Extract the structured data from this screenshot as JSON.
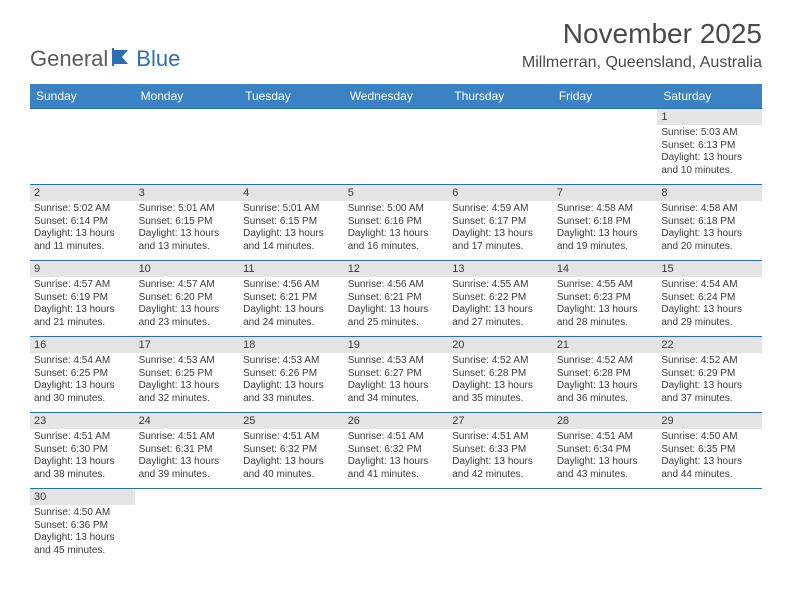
{
  "brand": {
    "general": "General",
    "blue": "Blue"
  },
  "title": "November 2025",
  "location": "Millmerran, Queensland, Australia",
  "colors": {
    "header_bg": "#3b82c4",
    "border": "#2a6fb5",
    "daynum_bg": "#e4e4e4",
    "text": "#3a3a3a"
  },
  "day_labels": [
    "Sunday",
    "Monday",
    "Tuesday",
    "Wednesday",
    "Thursday",
    "Friday",
    "Saturday"
  ],
  "weeks": [
    [
      {
        "day": "",
        "sunrise": "",
        "sunset": "",
        "daylight": ""
      },
      {
        "day": "",
        "sunrise": "",
        "sunset": "",
        "daylight": ""
      },
      {
        "day": "",
        "sunrise": "",
        "sunset": "",
        "daylight": ""
      },
      {
        "day": "",
        "sunrise": "",
        "sunset": "",
        "daylight": ""
      },
      {
        "day": "",
        "sunrise": "",
        "sunset": "",
        "daylight": ""
      },
      {
        "day": "",
        "sunrise": "",
        "sunset": "",
        "daylight": ""
      },
      {
        "day": "1",
        "sunrise": "Sunrise: 5:03 AM",
        "sunset": "Sunset: 6:13 PM",
        "daylight": "Daylight: 13 hours and 10 minutes."
      }
    ],
    [
      {
        "day": "2",
        "sunrise": "Sunrise: 5:02 AM",
        "sunset": "Sunset: 6:14 PM",
        "daylight": "Daylight: 13 hours and 11 minutes."
      },
      {
        "day": "3",
        "sunrise": "Sunrise: 5:01 AM",
        "sunset": "Sunset: 6:15 PM",
        "daylight": "Daylight: 13 hours and 13 minutes."
      },
      {
        "day": "4",
        "sunrise": "Sunrise: 5:01 AM",
        "sunset": "Sunset: 6:15 PM",
        "daylight": "Daylight: 13 hours and 14 minutes."
      },
      {
        "day": "5",
        "sunrise": "Sunrise: 5:00 AM",
        "sunset": "Sunset: 6:16 PM",
        "daylight": "Daylight: 13 hours and 16 minutes."
      },
      {
        "day": "6",
        "sunrise": "Sunrise: 4:59 AM",
        "sunset": "Sunset: 6:17 PM",
        "daylight": "Daylight: 13 hours and 17 minutes."
      },
      {
        "day": "7",
        "sunrise": "Sunrise: 4:58 AM",
        "sunset": "Sunset: 6:18 PM",
        "daylight": "Daylight: 13 hours and 19 minutes."
      },
      {
        "day": "8",
        "sunrise": "Sunrise: 4:58 AM",
        "sunset": "Sunset: 6:18 PM",
        "daylight": "Daylight: 13 hours and 20 minutes."
      }
    ],
    [
      {
        "day": "9",
        "sunrise": "Sunrise: 4:57 AM",
        "sunset": "Sunset: 6:19 PM",
        "daylight": "Daylight: 13 hours and 21 minutes."
      },
      {
        "day": "10",
        "sunrise": "Sunrise: 4:57 AM",
        "sunset": "Sunset: 6:20 PM",
        "daylight": "Daylight: 13 hours and 23 minutes."
      },
      {
        "day": "11",
        "sunrise": "Sunrise: 4:56 AM",
        "sunset": "Sunset: 6:21 PM",
        "daylight": "Daylight: 13 hours and 24 minutes."
      },
      {
        "day": "12",
        "sunrise": "Sunrise: 4:56 AM",
        "sunset": "Sunset: 6:21 PM",
        "daylight": "Daylight: 13 hours and 25 minutes."
      },
      {
        "day": "13",
        "sunrise": "Sunrise: 4:55 AM",
        "sunset": "Sunset: 6:22 PM",
        "daylight": "Daylight: 13 hours and 27 minutes."
      },
      {
        "day": "14",
        "sunrise": "Sunrise: 4:55 AM",
        "sunset": "Sunset: 6:23 PM",
        "daylight": "Daylight: 13 hours and 28 minutes."
      },
      {
        "day": "15",
        "sunrise": "Sunrise: 4:54 AM",
        "sunset": "Sunset: 6:24 PM",
        "daylight": "Daylight: 13 hours and 29 minutes."
      }
    ],
    [
      {
        "day": "16",
        "sunrise": "Sunrise: 4:54 AM",
        "sunset": "Sunset: 6:25 PM",
        "daylight": "Daylight: 13 hours and 30 minutes."
      },
      {
        "day": "17",
        "sunrise": "Sunrise: 4:53 AM",
        "sunset": "Sunset: 6:25 PM",
        "daylight": "Daylight: 13 hours and 32 minutes."
      },
      {
        "day": "18",
        "sunrise": "Sunrise: 4:53 AM",
        "sunset": "Sunset: 6:26 PM",
        "daylight": "Daylight: 13 hours and 33 minutes."
      },
      {
        "day": "19",
        "sunrise": "Sunrise: 4:53 AM",
        "sunset": "Sunset: 6:27 PM",
        "daylight": "Daylight: 13 hours and 34 minutes."
      },
      {
        "day": "20",
        "sunrise": "Sunrise: 4:52 AM",
        "sunset": "Sunset: 6:28 PM",
        "daylight": "Daylight: 13 hours and 35 minutes."
      },
      {
        "day": "21",
        "sunrise": "Sunrise: 4:52 AM",
        "sunset": "Sunset: 6:28 PM",
        "daylight": "Daylight: 13 hours and 36 minutes."
      },
      {
        "day": "22",
        "sunrise": "Sunrise: 4:52 AM",
        "sunset": "Sunset: 6:29 PM",
        "daylight": "Daylight: 13 hours and 37 minutes."
      }
    ],
    [
      {
        "day": "23",
        "sunrise": "Sunrise: 4:51 AM",
        "sunset": "Sunset: 6:30 PM",
        "daylight": "Daylight: 13 hours and 38 minutes."
      },
      {
        "day": "24",
        "sunrise": "Sunrise: 4:51 AM",
        "sunset": "Sunset: 6:31 PM",
        "daylight": "Daylight: 13 hours and 39 minutes."
      },
      {
        "day": "25",
        "sunrise": "Sunrise: 4:51 AM",
        "sunset": "Sunset: 6:32 PM",
        "daylight": "Daylight: 13 hours and 40 minutes."
      },
      {
        "day": "26",
        "sunrise": "Sunrise: 4:51 AM",
        "sunset": "Sunset: 6:32 PM",
        "daylight": "Daylight: 13 hours and 41 minutes."
      },
      {
        "day": "27",
        "sunrise": "Sunrise: 4:51 AM",
        "sunset": "Sunset: 6:33 PM",
        "daylight": "Daylight: 13 hours and 42 minutes."
      },
      {
        "day": "28",
        "sunrise": "Sunrise: 4:51 AM",
        "sunset": "Sunset: 6:34 PM",
        "daylight": "Daylight: 13 hours and 43 minutes."
      },
      {
        "day": "29",
        "sunrise": "Sunrise: 4:50 AM",
        "sunset": "Sunset: 6:35 PM",
        "daylight": "Daylight: 13 hours and 44 minutes."
      }
    ],
    [
      {
        "day": "30",
        "sunrise": "Sunrise: 4:50 AM",
        "sunset": "Sunset: 6:36 PM",
        "daylight": "Daylight: 13 hours and 45 minutes."
      },
      {
        "day": "",
        "sunrise": "",
        "sunset": "",
        "daylight": ""
      },
      {
        "day": "",
        "sunrise": "",
        "sunset": "",
        "daylight": ""
      },
      {
        "day": "",
        "sunrise": "",
        "sunset": "",
        "daylight": ""
      },
      {
        "day": "",
        "sunrise": "",
        "sunset": "",
        "daylight": ""
      },
      {
        "day": "",
        "sunrise": "",
        "sunset": "",
        "daylight": ""
      },
      {
        "day": "",
        "sunrise": "",
        "sunset": "",
        "daylight": ""
      }
    ]
  ]
}
